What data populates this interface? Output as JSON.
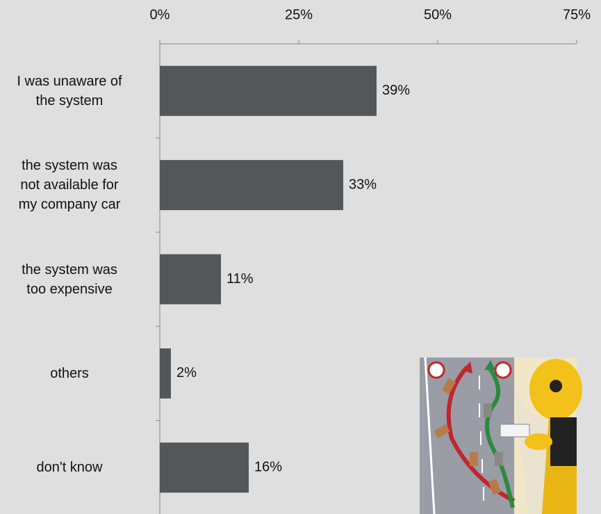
{
  "chart_data": {
    "type": "bar",
    "orientation": "horizontal",
    "categories": [
      "I was unaware of\nthe system",
      "the system was\nnot available for\nmy company car",
      "the system was\ntoo expensive",
      "others",
      "don't know"
    ],
    "values": [
      39,
      33,
      11,
      2,
      16
    ],
    "value_labels": [
      "39%",
      "33%",
      "11%",
      "2%",
      "16%"
    ],
    "color": "#53575a",
    "xlim": [
      0,
      75
    ],
    "xticks": [
      {
        "value": 0,
        "label": "0%"
      },
      {
        "value": 25,
        "label": "25%"
      },
      {
        "value": 50,
        "label": "50%"
      },
      {
        "value": 75,
        "label": "75%"
      }
    ]
  }
}
